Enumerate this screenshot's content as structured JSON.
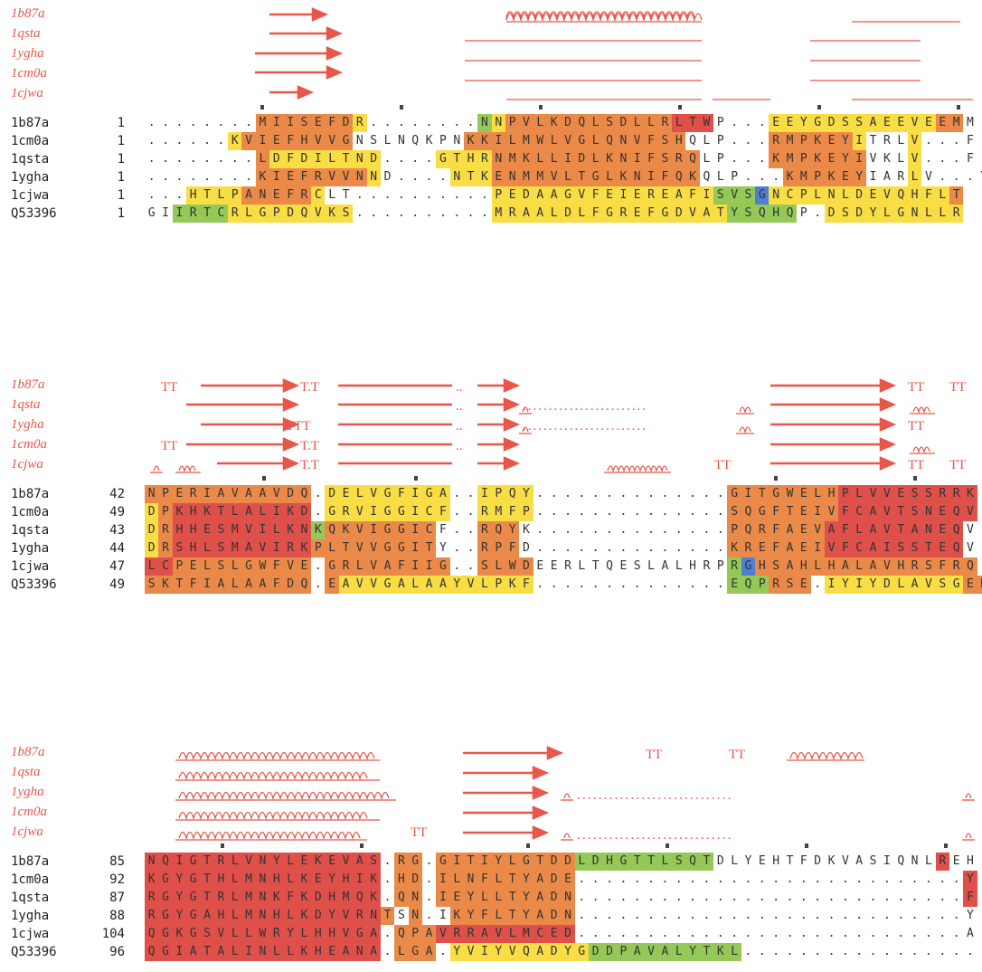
{
  "blocks": [
    {
      "ss_labels": [
        "1b87a",
        "1qsta",
        "1ygha",
        "1cm0a",
        "1cjwa"
      ],
      "seqs": [
        {
          "name": "1b87a",
          "start": "1",
          "seq": "........MIISEFDR........NNPVLKDQLSDLLRLTWP...EEYGDSSAEEVEEMM",
          "cons": "........33333332........12333333333333444...222222222222233"
        },
        {
          "name": "1cm0a",
          "start": "1",
          "seq": "......KVIEFHVVGNSLNQKPNKKILMWLVGLQNVFSHQLP...RMPKEYITRLV...F",
          "cons": "......233333333........3333333333333333...3333333332...2"
        },
        {
          "name": "1qsta",
          "start": "1",
          "seq": "........LDFDILTND....GTHRNMKLLIDLKNIFSRQLP...KMPKEYIVKLV...F",
          "cons": "........322222222....2222333333333333333...333333333...2"
        },
        {
          "name": "1ygha",
          "start": "1",
          "seq": "........KIEFRVVNND....NTKENMMVLTGLKNIFQKQLP...KMPKEYIARLV...Y",
          "cons": "........333333332....2222333333333333333...333333333...2"
        },
        {
          "name": "1cjwa",
          "start": "1",
          "seq": "...HTLPANEFRCLT..........PEDAAGVFEIEREAFISVSGNCPLNLDEVQHFLT",
          "cons": "...2222333332............2222222222222222111022222222222223"
        },
        {
          "name": "Q53396",
          "start": "1",
          "seq": "GIIRTCRLGPDQVKS..........MRAALDLFGREFGDVATYSQHQP.DSDYLGNLLR",
          "cons": "..1111222222222..........2222222222222222211111.222222222222"
        }
      ]
    },
    {
      "ss_labels": [
        "1b87a",
        "1qsta",
        "1ygha",
        "1cm0a",
        "1cjwa"
      ],
      "seqs": [
        {
          "name": "1b87a",
          "start": "42",
          "seq": "NPERIAVAAVDQ.DELVGFIGA..IPQY..............GITGWELHPLVVESSRRK",
          "cons": "333333333333.222222222..2222..............333333334444444444"
        },
        {
          "name": "1cm0a",
          "start": "49",
          "seq": "DPKHKTLALIKD.GRVIGGICF..RMFP..............SQGFTEIVFCAVTSNEQV",
          "cons": "234444444444.222222222..2222..............333333334444444444"
        },
        {
          "name": "1qsta",
          "start": "43",
          "seq": "DRHHESMVILKNKQKVIGGICF..RQYK..............PQRFAEVAFLAVTANEQV",
          "cons": "234444444444133333333..3333..............333333334444444444"
        },
        {
          "name": "1ygha",
          "start": "44",
          "seq": "DRSHLSMAVIRKPLTVVGGITY..RPFD..............KREFAEIVFCAISSTEQV",
          "cons": "234444444444333333333..3333..............333333334444444444"
        },
        {
          "name": "1cjwa",
          "start": "47",
          "seq": "LCPELSLGWFVE.GRLVAFIIG..SLWDEERLTQESLALHRPRGHSAHLHALAVHRSFRQ",
          "cons": "443333333333.333333333..3333..............103333333333333333"
        },
        {
          "name": "Q53396",
          "start": "49",
          "seq": "SKTFIALAAFDQ.EAVVGALAAYVLPKF..............EQPRSE.IYIYDLAVSGEHRR",
          "cons": "333333333333.322222222222222..............111333.22222222223333"
        }
      ]
    },
    {
      "ss_labels": [
        "1b87a",
        "1qsta",
        "1ygha",
        "1cm0a",
        "1cjwa"
      ],
      "seqs": [
        {
          "name": "1b87a",
          "start": "85",
          "seq": "NQIGTRLVNYLEKEVAS.RG.GITIYLGTDDLDHGTTLSQTDLYEHTFDKVASIQNLREH",
          "cons": "44444444444444444.33.33333333331111111111................4"
        },
        {
          "name": "1cm0a",
          "start": "92",
          "seq": "KGYGTHLMNHLKEYHIK.HD.ILNFLTYADE............................Y",
          "cons": "44444444444444444.33.3333333333............................4"
        },
        {
          "name": "1qsta",
          "start": "87",
          "seq": "RGYGTRLMNKFKDHMQK.QN.IEYLLTYADN............................F",
          "cons": "44444444444444444.33.3333333333............................4"
        },
        {
          "name": "1ygha",
          "start": "88",
          "seq": "RGYGAHLMNHLKDYVRNTSN.IKYFLTYADN............................Y",
          "cons": "444444444444444443.33.3333333333............................4"
        },
        {
          "name": "1cjwa",
          "start": "104",
          "seq": "QGKGSVLLWRYLHHVGA.QPAVRRAVLMCED............................A",
          "cons": "44444444444444444.33344444444444............................4"
        },
        {
          "name": "Q53396",
          "start": "96",
          "seq": "QGIATALINLLKHEANA.LGA.YVIYVQADYGDDPAVALYTKL...................",
          "cons": "44444444444444444.333.2222222222111111111111..................."
        }
      ]
    }
  ]
}
